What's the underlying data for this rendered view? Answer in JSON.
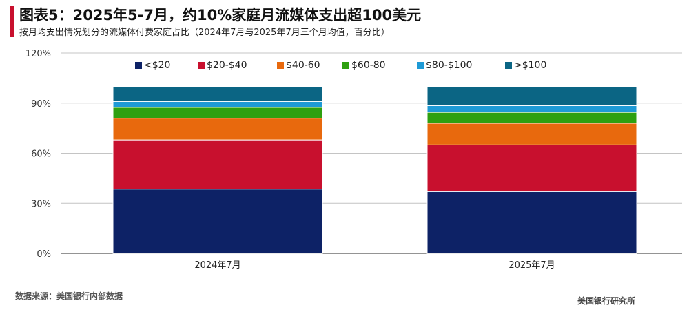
{
  "header": {
    "title": "图表5：2025年5-7月，约10%家庭月流媒体支出超100美元",
    "subtitle": "按月均支出情况划分的流媒体付费家庭占比（2024年7月与2025年7月三个月均值，百分比）"
  },
  "footer": {
    "source": "数据来源：美国银行内部数据",
    "brand": "美国银行研究所"
  },
  "chart_data": {
    "type": "bar",
    "stacked": true,
    "title": "",
    "xlabel": "",
    "ylabel": "",
    "ylim": [
      0,
      120
    ],
    "yticks": [
      0,
      30,
      60,
      90,
      120
    ],
    "ytick_labels": [
      "0%",
      "30%",
      "60%",
      "90%",
      "120%"
    ],
    "grid": true,
    "legend_position": "top",
    "categories": [
      "2024年7月",
      "2025年7月"
    ],
    "series": [
      {
        "name": "<$20",
        "color": "#0d2266",
        "values": [
          38.5,
          37
        ]
      },
      {
        "name": "$20-$40",
        "color": "#c8102e",
        "values": [
          29.5,
          28
        ]
      },
      {
        "name": "$40-60",
        "color": "#e8690d",
        "values": [
          13,
          13
        ]
      },
      {
        "name": "$60-80",
        "color": "#2ea010",
        "values": [
          6.5,
          6.5
        ]
      },
      {
        "name": "$80-$100",
        "color": "#1e9ad6",
        "values": [
          3.5,
          4
        ]
      },
      {
        "name": ">$100",
        "color": "#0b6584",
        "values": [
          9,
          11.5
        ]
      }
    ]
  }
}
